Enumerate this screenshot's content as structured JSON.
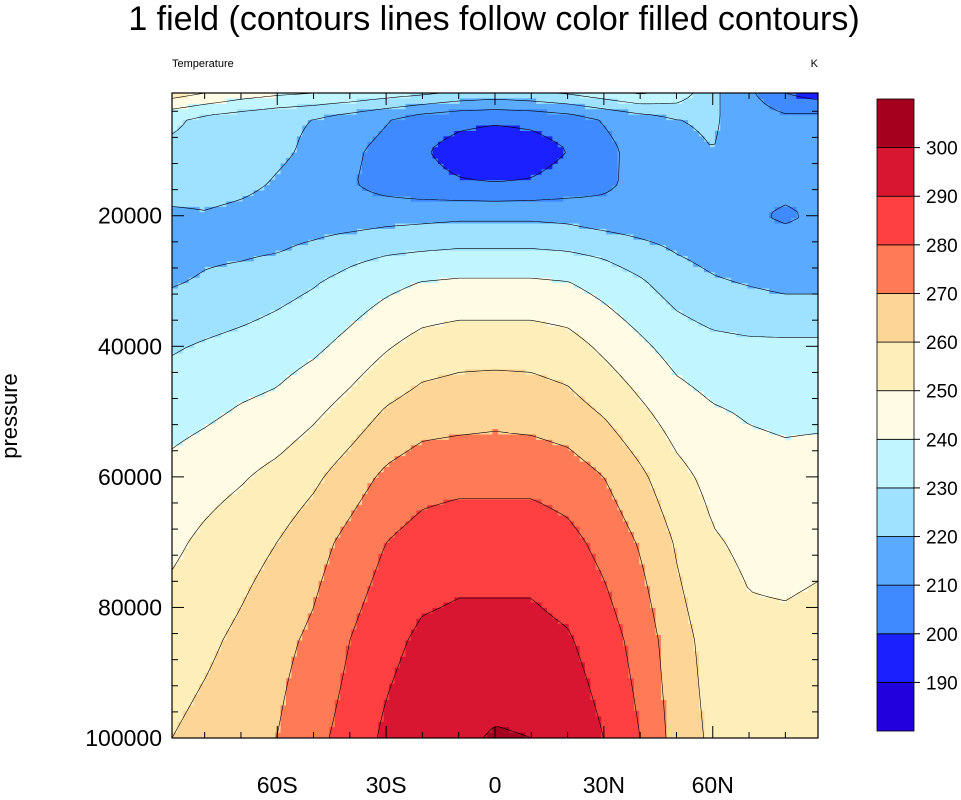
{
  "chart_data": {
    "type": "heatmap",
    "title": "1 field (contours lines follow color filled contours)",
    "left_string": "Temperature",
    "right_string": "K",
    "ylabel": "pressure",
    "xlabel": "",
    "x_ticks": [
      {
        "value": -60,
        "label": "60S"
      },
      {
        "value": -30,
        "label": "30S"
      },
      {
        "value": 0,
        "label": "0"
      },
      {
        "value": 30,
        "label": "30N"
      },
      {
        "value": 60,
        "label": "60N"
      }
    ],
    "y_ticks": [
      {
        "value": 20000,
        "label": "20000"
      },
      {
        "value": 40000,
        "label": "40000"
      },
      {
        "value": 60000,
        "label": "60000"
      },
      {
        "value": 80000,
        "label": "80000"
      },
      {
        "value": 100000,
        "label": "100000"
      }
    ],
    "xlim": [
      -89,
      89
    ],
    "ylim": [
      100000,
      1200
    ],
    "y_reversed": true,
    "x": [
      -89,
      -80,
      -70,
      -60,
      -50,
      -40,
      -30,
      -20,
      -10,
      0,
      10,
      20,
      30,
      40,
      50,
      60,
      70,
      80,
      89
    ],
    "y": [
      1200,
      5000,
      10000,
      15000,
      20000,
      25000,
      30000,
      40000,
      50000,
      60000,
      70000,
      85000,
      100000
    ],
    "z": [
      [
        255,
        250,
        245,
        242,
        240,
        238,
        235,
        232,
        228,
        226,
        228,
        231,
        236,
        241,
        237,
        222,
        212,
        200,
        195
      ],
      [
        232,
        228,
        225,
        222,
        220,
        216,
        211,
        206,
        203,
        202,
        203,
        206,
        211,
        216,
        220,
        221,
        216,
        212,
        213
      ],
      [
        228,
        227,
        225,
        222,
        218,
        212,
        207,
        201,
        196,
        193,
        195,
        200,
        207,
        214,
        218,
        220,
        217,
        214,
        213
      ],
      [
        225,
        225,
        223,
        219,
        216,
        211,
        206,
        203,
        201,
        200,
        201,
        204,
        208,
        213,
        216,
        215,
        213,
        212,
        212
      ],
      [
        218,
        219,
        217,
        215,
        214,
        214,
        216,
        217,
        218,
        218,
        218,
        217,
        214,
        213,
        213,
        213,
        211,
        209,
        211
      ],
      [
        216,
        218,
        218,
        219,
        222,
        226,
        228,
        229,
        230,
        230,
        230,
        229,
        227,
        223,
        219,
        216,
        214,
        213,
        213
      ],
      [
        219,
        221,
        223,
        226,
        229,
        233,
        237,
        240,
        241,
        241,
        241,
        240,
        236,
        231,
        225,
        221,
        219,
        217,
        217
      ],
      [
        229,
        231,
        233,
        235,
        238,
        243,
        249,
        254,
        256,
        256,
        256,
        254,
        248,
        242,
        236,
        233,
        232,
        232,
        232
      ],
      [
        236,
        238,
        241,
        243,
        248,
        254,
        261,
        265,
        266,
        267,
        266,
        264,
        259,
        252,
        245,
        241,
        239,
        238,
        238
      ],
      [
        243,
        246,
        249,
        253,
        258,
        265,
        272,
        276,
        277,
        277,
        277,
        275,
        270,
        262,
        253,
        247,
        244,
        243,
        244
      ],
      [
        248,
        252,
        256,
        260,
        266,
        273,
        280,
        284,
        286,
        286,
        286,
        283,
        277,
        269,
        259,
        251,
        248,
        247,
        248
      ],
      [
        255,
        258,
        262,
        267,
        272,
        280,
        287,
        292,
        293,
        293,
        293,
        291,
        285,
        276,
        264,
        256,
        252,
        252,
        253
      ],
      [
        260,
        263,
        266,
        270,
        277,
        284,
        292,
        297,
        298,
        301,
        300,
        297,
        290,
        280,
        266,
        258,
        255,
        255,
        256
      ]
    ],
    "levels": [
      190,
      200,
      210,
      220,
      230,
      240,
      250,
      260,
      270,
      280,
      290,
      300
    ],
    "colors": [
      "#2200dd",
      "#1a20ff",
      "#3f8aff",
      "#5aaaff",
      "#9ee2ff",
      "#c2f6ff",
      "#fffbe4",
      "#feeeba",
      "#fdd597",
      "#fe7b56",
      "#ff4040",
      "#d81632",
      "#a5001e"
    ],
    "colorbar_labels": [
      "190",
      "200",
      "210",
      "220",
      "230",
      "240",
      "250",
      "260",
      "270",
      "280",
      "290",
      "300"
    ],
    "contour_lines": true,
    "grid": false,
    "legend": "colorbar right"
  }
}
